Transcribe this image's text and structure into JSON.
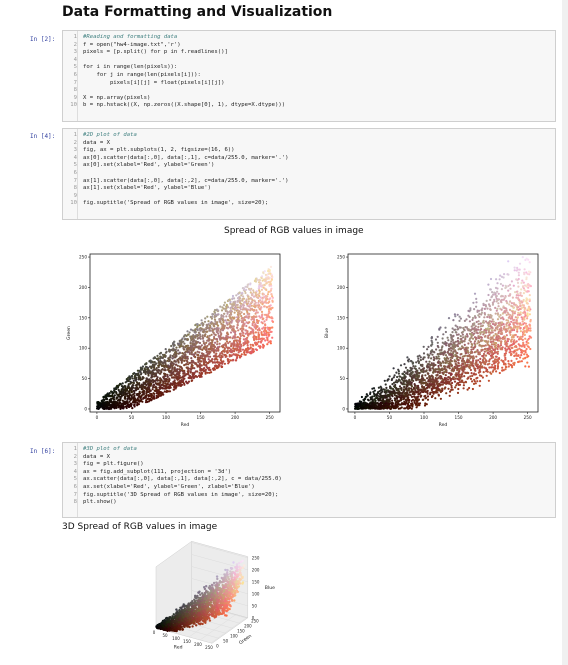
{
  "notebook": {
    "title": "Data Formatting and Visualization"
  },
  "cells": [
    {
      "prompt": "In [2]:",
      "lines": [
        "#Reading and formatting data",
        "f = open(\"hw4-image.txt\",'r')",
        "pixels = [p.split() for p in f.readlines()]",
        "",
        "for i in range(len(pixels)):",
        "    for j in range(len(pixels[i])):",
        "        pixels[i][j] = float(pixels[i][j])",
        "",
        "X = np.array(pixels)",
        "b = np.hstack((X, np.zeros((X.shape[0], 1), dtype=X.dtype)))"
      ]
    },
    {
      "prompt": "In [4]:",
      "lines": [
        "#2D plot of data",
        "data = X",
        "fig, ax = plt.subplots(1, 2, figsize=(16, 6))",
        "ax[0].scatter(data[:,0], data[:,1], c=data/255.0, marker='.')",
        "ax[0].set(xlabel='Red', ylabel='Green')",
        "",
        "ax[1].scatter(data[:,0], data[:,2], c=data/255.0, marker='.')",
        "ax[1].set(xlabel='Red', ylabel='Blue')",
        "",
        "fig.suptitle('Spread of RGB values in image', size=20);"
      ]
    },
    {
      "prompt": "In [6]:",
      "lines": [
        "#3D plot of data",
        "data = X",
        "fig = plt.figure()",
        "ax = fig.add_subplot(111, projection = '3d')",
        "ax.scatter(data[:,0], data[:,1], data[:,2], c = data/255.0)",
        "ax.set(xlabel='Red', ylabel='Green', zlabel='Blue')",
        "fig.suptitle('3D Spread of RGB values in image', size=20);",
        "plt.show()"
      ]
    }
  ],
  "chart_data": [
    {
      "type": "scatter",
      "title": "Spread of RGB values in image",
      "xlabel": "Red",
      "ylabel": "Green",
      "xlim": [
        -10,
        265
      ],
      "ylim": [
        -5,
        255
      ],
      "xticks": [
        0,
        50,
        100,
        150,
        200,
        250
      ],
      "yticks": [
        0,
        50,
        100,
        150,
        200,
        250
      ]
    },
    {
      "type": "scatter",
      "title": "Spread of RGB values in image",
      "xlabel": "Red",
      "ylabel": "Blue",
      "xlim": [
        -10,
        265
      ],
      "ylim": [
        -5,
        255
      ],
      "xticks": [
        0,
        50,
        100,
        150,
        200,
        250
      ],
      "yticks": [
        0,
        50,
        100,
        150,
        200,
        250
      ]
    },
    {
      "type": "scatter",
      "title": "3D Spread of RGB values in image",
      "xlabel": "Red",
      "ylabel": "Green",
      "zlabel": "Blue",
      "xticks": [
        0,
        50,
        100,
        150,
        200,
        250
      ],
      "yticks": [
        0,
        50,
        100,
        150,
        200,
        250
      ],
      "zticks": [
        0,
        50,
        100,
        150,
        200,
        250
      ]
    }
  ]
}
